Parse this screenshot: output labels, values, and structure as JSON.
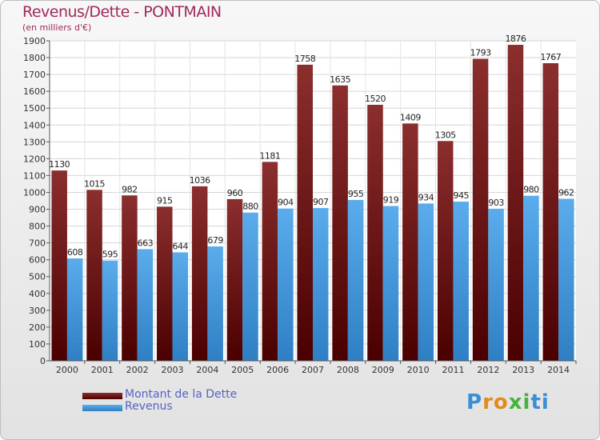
{
  "header": {
    "title": "Revenus/Dette - PONTMAIN",
    "subtitle": "(en milliers d'€)"
  },
  "legend": {
    "debt_label": "Montant de la Dette",
    "revenue_label": "Revenus"
  },
  "brand": {
    "name": "Proxiti",
    "letters": [
      "P",
      "r",
      "o",
      "x",
      "i",
      "t",
      "i"
    ],
    "letter_colors": [
      "#3a8fd6",
      "#e38a1d",
      "#e38a1d",
      "#49b13f",
      "#49b13f",
      "#3a8fd6",
      "#3a8fd6"
    ]
  },
  "colors": {
    "debt_top": "#8b2e2e",
    "debt_bottom": "#4a0000",
    "revenue_top": "#5aacec",
    "revenue_bottom": "#2f7fc4"
  },
  "chart_data": {
    "type": "bar",
    "categories": [
      "2000",
      "2001",
      "2002",
      "2003",
      "2004",
      "2005",
      "2006",
      "2007",
      "2008",
      "2009",
      "2010",
      "2011",
      "2012",
      "2013",
      "2014"
    ],
    "series": [
      {
        "name": "Montant de la Dette",
        "values": [
          1130,
          1015,
          982,
          915,
          1036,
          960,
          1181,
          1758,
          1635,
          1520,
          1409,
          1305,
          1793,
          1876,
          1767
        ]
      },
      {
        "name": "Revenus",
        "values": [
          608,
          595,
          663,
          644,
          679,
          880,
          904,
          907,
          955,
          919,
          934,
          945,
          903,
          980,
          962
        ]
      }
    ],
    "ylim": [
      0,
      1900
    ],
    "yticks": [
      0,
      100,
      200,
      300,
      400,
      500,
      600,
      700,
      800,
      900,
      1000,
      1100,
      1200,
      1300,
      1400,
      1500,
      1600,
      1700,
      1800,
      1900
    ],
    "grid": true,
    "legend_position": "bottom-left"
  }
}
